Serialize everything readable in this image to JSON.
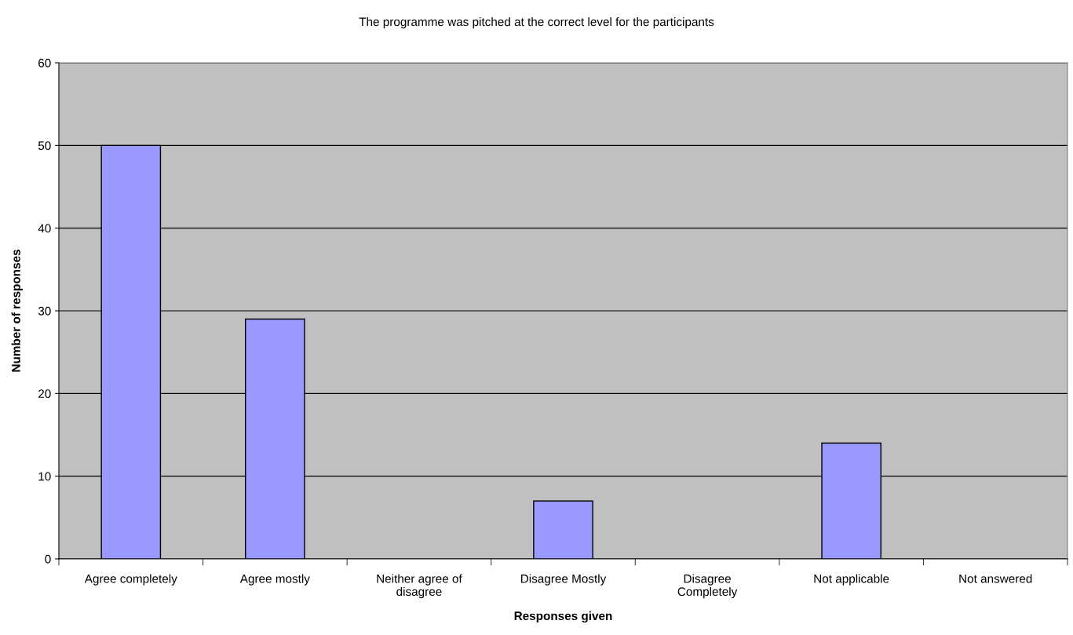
{
  "chart_data": {
    "type": "bar",
    "title": "The programme was pitched at the correct level for the participants",
    "xlabel": "Responses given",
    "ylabel": "Number of responses",
    "categories": [
      "Agree completely",
      "Agree mostly",
      "Neither agree of disagree",
      "Disagree Mostly",
      "Disagree Completely",
      "Not applicable",
      "Not answered"
    ],
    "values": [
      50,
      29,
      0,
      7,
      0,
      14,
      0
    ],
    "color": "#9999ff",
    "ylim": [
      0,
      60
    ],
    "yticks": [
      0,
      10,
      20,
      30,
      40,
      50,
      60
    ],
    "grid": "y",
    "legend": false
  }
}
